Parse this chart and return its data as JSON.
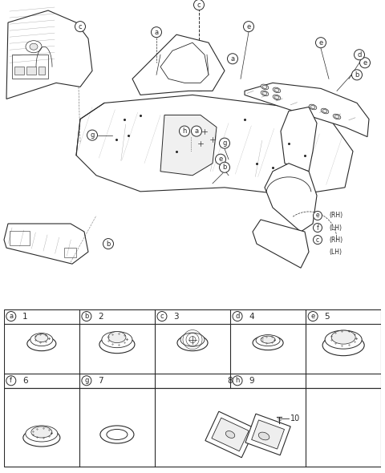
{
  "bg_color": "#ffffff",
  "line_color": "#2a2a2a",
  "fig_width": 4.8,
  "fig_height": 5.9,
  "dpi": 100,
  "table_headers_row1": [
    [
      "a",
      "1"
    ],
    [
      "b",
      "2"
    ],
    [
      "c",
      "3"
    ],
    [
      "d",
      "4"
    ],
    [
      "e",
      "5"
    ]
  ],
  "table_headers_row2": [
    [
      "f",
      "6"
    ],
    [
      "g",
      "7"
    ],
    [
      "",
      "8"
    ],
    [
      "h",
      "9"
    ]
  ],
  "rh_lh": [
    "e (RH)",
    "f (LH)",
    "c (RH)",
    "(LH)"
  ],
  "callout_e_rh": "(RH)",
  "callout_f_lh": "(LH)",
  "callout_c_rh": "(RH)",
  "callout_lh": "(LH)"
}
